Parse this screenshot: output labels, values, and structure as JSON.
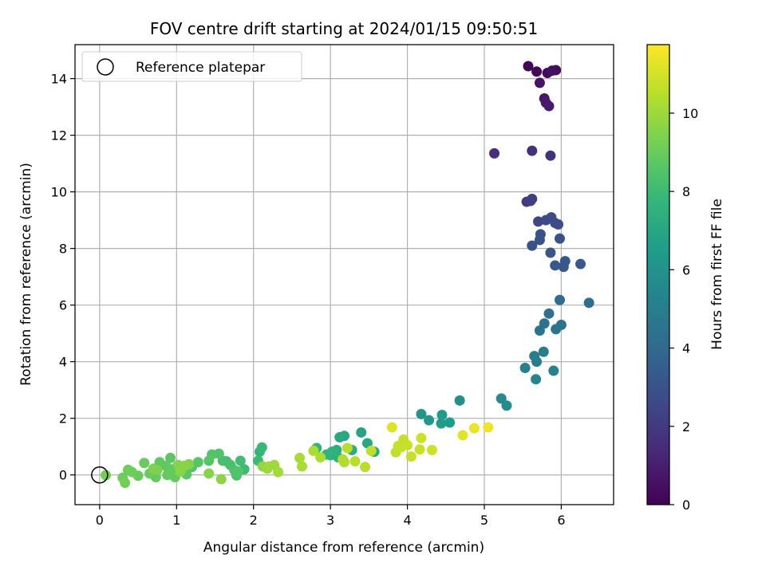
{
  "chart_data": {
    "type": "scatter",
    "title": "FOV centre drift starting at 2024/01/15 09:50:51",
    "xlabel": "Angular distance from reference (arcmin)",
    "ylabel": "Rotation from reference (arcmin)",
    "xlim": [
      -0.32,
      6.68
    ],
    "ylim": [
      -1.05,
      15.2
    ],
    "xticks": [
      0,
      1,
      2,
      3,
      4,
      5,
      6
    ],
    "yticks": [
      0,
      2,
      4,
      6,
      8,
      10,
      12,
      14
    ],
    "grid": true,
    "legend": {
      "placement": "top-left",
      "entries": [
        "Reference platepar"
      ]
    },
    "reference_point": {
      "x": 0,
      "y": 0
    },
    "colorbar": {
      "label": "Hours from first FF file",
      "range": [
        0,
        11.75
      ],
      "ticks": [
        0,
        2,
        4,
        6,
        8,
        10
      ],
      "colormap": "viridis",
      "stops": [
        "#440154",
        "#482878",
        "#3e4989",
        "#31688e",
        "#26828e",
        "#1f9e89",
        "#35b779",
        "#6ece58",
        "#b5de2b",
        "#fde725"
      ]
    },
    "points": [
      {
        "x": 5.57,
        "y": 14.44,
        "h": 0.1
      },
      {
        "x": 5.68,
        "y": 14.25,
        "h": 0.2
      },
      {
        "x": 5.82,
        "y": 14.2,
        "h": 0.3
      },
      {
        "x": 5.93,
        "y": 14.3,
        "h": 0.4
      },
      {
        "x": 5.88,
        "y": 14.28,
        "h": 0.5
      },
      {
        "x": 5.72,
        "y": 13.85,
        "h": 0.6
      },
      {
        "x": 5.78,
        "y": 13.3,
        "h": 0.7
      },
      {
        "x": 5.8,
        "y": 13.15,
        "h": 0.8
      },
      {
        "x": 5.84,
        "y": 13.03,
        "h": 0.9
      },
      {
        "x": 5.13,
        "y": 11.36,
        "h": 1.5
      },
      {
        "x": 5.62,
        "y": 11.45,
        "h": 1.6
      },
      {
        "x": 5.86,
        "y": 11.28,
        "h": 1.7
      },
      {
        "x": 5.55,
        "y": 9.65,
        "h": 2.0
      },
      {
        "x": 5.62,
        "y": 9.75,
        "h": 2.1
      },
      {
        "x": 5.6,
        "y": 9.68,
        "h": 2.2
      },
      {
        "x": 5.7,
        "y": 8.95,
        "h": 2.5
      },
      {
        "x": 5.8,
        "y": 9.0,
        "h": 2.6
      },
      {
        "x": 5.87,
        "y": 9.1,
        "h": 2.65
      },
      {
        "x": 5.92,
        "y": 8.9,
        "h": 2.7
      },
      {
        "x": 5.96,
        "y": 8.85,
        "h": 2.8
      },
      {
        "x": 5.73,
        "y": 8.5,
        "h": 2.9
      },
      {
        "x": 5.72,
        "y": 8.3,
        "h": 3.0
      },
      {
        "x": 5.62,
        "y": 8.1,
        "h": 3.0
      },
      {
        "x": 5.98,
        "y": 8.35,
        "h": 3.0
      },
      {
        "x": 5.86,
        "y": 7.85,
        "h": 3.1
      },
      {
        "x": 5.92,
        "y": 7.4,
        "h": 3.2
      },
      {
        "x": 6.03,
        "y": 7.35,
        "h": 3.2
      },
      {
        "x": 6.05,
        "y": 7.55,
        "h": 3.25
      },
      {
        "x": 6.25,
        "y": 7.45,
        "h": 3.3
      },
      {
        "x": 5.98,
        "y": 6.18,
        "h": 4.1
      },
      {
        "x": 6.36,
        "y": 6.08,
        "h": 4.2
      },
      {
        "x": 5.84,
        "y": 5.7,
        "h": 4.3
      },
      {
        "x": 5.78,
        "y": 5.35,
        "h": 4.4
      },
      {
        "x": 6.0,
        "y": 5.3,
        "h": 4.5
      },
      {
        "x": 5.72,
        "y": 5.1,
        "h": 4.5
      },
      {
        "x": 5.93,
        "y": 5.15,
        "h": 4.5
      },
      {
        "x": 5.65,
        "y": 4.2,
        "h": 5.0
      },
      {
        "x": 5.77,
        "y": 4.35,
        "h": 5.0
      },
      {
        "x": 5.68,
        "y": 4.0,
        "h": 5.0
      },
      {
        "x": 5.53,
        "y": 3.78,
        "h": 5.1
      },
      {
        "x": 5.9,
        "y": 3.68,
        "h": 5.2
      },
      {
        "x": 5.67,
        "y": 3.38,
        "h": 5.3
      },
      {
        "x": 4.68,
        "y": 2.63,
        "h": 5.9
      },
      {
        "x": 5.22,
        "y": 2.7,
        "h": 5.6
      },
      {
        "x": 5.29,
        "y": 2.45,
        "h": 5.7
      },
      {
        "x": 4.18,
        "y": 2.15,
        "h": 6.2
      },
      {
        "x": 4.28,
        "y": 1.93,
        "h": 6.3
      },
      {
        "x": 4.45,
        "y": 2.12,
        "h": 6.4
      },
      {
        "x": 4.44,
        "y": 1.82,
        "h": 6.5
      },
      {
        "x": 4.55,
        "y": 1.85,
        "h": 6.5
      },
      {
        "x": 3.4,
        "y": 1.5,
        "h": 6.8
      },
      {
        "x": 3.48,
        "y": 1.12,
        "h": 7.0
      },
      {
        "x": 3.57,
        "y": 0.82,
        "h": 7.1
      },
      {
        "x": 3.18,
        "y": 1.38,
        "h": 7.0
      },
      {
        "x": 3.12,
        "y": 1.33,
        "h": 7.1
      },
      {
        "x": 3.28,
        "y": 0.88,
        "h": 7.3
      },
      {
        "x": 3.08,
        "y": 0.88,
        "h": 7.3
      },
      {
        "x": 3.0,
        "y": 0.7,
        "h": 7.4
      },
      {
        "x": 3.02,
        "y": 0.82,
        "h": 7.5
      },
      {
        "x": 3.1,
        "y": 0.62,
        "h": 7.5
      },
      {
        "x": 2.95,
        "y": 0.72,
        "h": 7.6
      },
      {
        "x": 2.82,
        "y": 0.95,
        "h": 7.7
      },
      {
        "x": 2.08,
        "y": 0.82,
        "h": 7.8
      },
      {
        "x": 2.11,
        "y": 0.97,
        "h": 7.9
      },
      {
        "x": 2.06,
        "y": 0.5,
        "h": 8.0
      },
      {
        "x": 1.88,
        "y": 0.2,
        "h": 8.0
      },
      {
        "x": 1.83,
        "y": 0.5,
        "h": 8.1
      },
      {
        "x": 1.65,
        "y": 0.48,
        "h": 8.2
      },
      {
        "x": 1.6,
        "y": 0.5,
        "h": 8.3
      },
      {
        "x": 1.7,
        "y": 0.35,
        "h": 8.3
      },
      {
        "x": 1.75,
        "y": 0.17,
        "h": 8.4
      },
      {
        "x": 1.78,
        "y": -0.02,
        "h": 8.4
      },
      {
        "x": 1.8,
        "y": 0.12,
        "h": 8.5
      },
      {
        "x": 1.46,
        "y": 0.72,
        "h": 8.5
      },
      {
        "x": 1.55,
        "y": 0.75,
        "h": 8.5
      },
      {
        "x": 1.42,
        "y": 0.5,
        "h": 8.6
      },
      {
        "x": 1.28,
        "y": 0.45,
        "h": 8.6
      },
      {
        "x": 1.2,
        "y": 0.28,
        "h": 8.6
      },
      {
        "x": 1.1,
        "y": 0.2,
        "h": 8.7
      },
      {
        "x": 1.13,
        "y": 0.02,
        "h": 8.7
      },
      {
        "x": 0.92,
        "y": 0.6,
        "h": 8.7
      },
      {
        "x": 0.78,
        "y": 0.45,
        "h": 8.8
      },
      {
        "x": 0.86,
        "y": 0.32,
        "h": 8.8
      },
      {
        "x": 0.95,
        "y": 0.2,
        "h": 8.8
      },
      {
        "x": 0.88,
        "y": 0.0,
        "h": 8.9
      },
      {
        "x": 0.98,
        "y": -0.08,
        "h": 8.9
      },
      {
        "x": 0.73,
        "y": -0.08,
        "h": 8.9
      },
      {
        "x": 0.65,
        "y": 0.05,
        "h": 9.0
      },
      {
        "x": 0.58,
        "y": 0.42,
        "h": 9.0
      },
      {
        "x": 0.5,
        "y": -0.03,
        "h": 9.0
      },
      {
        "x": 0.37,
        "y": 0.18,
        "h": 9.1
      },
      {
        "x": 0.42,
        "y": 0.1,
        "h": 9.1
      },
      {
        "x": 0.3,
        "y": -0.1,
        "h": 9.1
      },
      {
        "x": 0.33,
        "y": -0.28,
        "h": 9.2
      },
      {
        "x": 0.08,
        "y": -0.01,
        "h": 9.2
      },
      {
        "x": 0.7,
        "y": 0.22,
        "h": 9.4
      },
      {
        "x": 0.75,
        "y": 0.17,
        "h": 9.4
      },
      {
        "x": 1.02,
        "y": 0.35,
        "h": 9.5
      },
      {
        "x": 1.16,
        "y": 0.38,
        "h": 9.5
      },
      {
        "x": 1.1,
        "y": 0.32,
        "h": 9.6
      },
      {
        "x": 1.05,
        "y": 0.12,
        "h": 9.6
      },
      {
        "x": 1.42,
        "y": 0.05,
        "h": 9.6
      },
      {
        "x": 1.58,
        "y": -0.15,
        "h": 9.7
      },
      {
        "x": 2.12,
        "y": 0.3,
        "h": 9.8
      },
      {
        "x": 2.2,
        "y": 0.3,
        "h": 10.0
      },
      {
        "x": 2.18,
        "y": 0.22,
        "h": 10.0
      },
      {
        "x": 2.27,
        "y": 0.35,
        "h": 10.0
      },
      {
        "x": 2.32,
        "y": 0.1,
        "h": 10.1
      },
      {
        "x": 2.6,
        "y": 0.6,
        "h": 10.2
      },
      {
        "x": 2.63,
        "y": 0.3,
        "h": 10.2
      },
      {
        "x": 2.78,
        "y": 0.85,
        "h": 10.3
      },
      {
        "x": 2.87,
        "y": 0.62,
        "h": 10.3
      },
      {
        "x": 3.18,
        "y": 0.45,
        "h": 10.4
      },
      {
        "x": 3.16,
        "y": 0.55,
        "h": 10.4
      },
      {
        "x": 3.22,
        "y": 0.95,
        "h": 10.5
      },
      {
        "x": 3.32,
        "y": 0.48,
        "h": 10.5
      },
      {
        "x": 3.45,
        "y": 0.28,
        "h": 10.5
      },
      {
        "x": 3.53,
        "y": 0.85,
        "h": 10.6
      },
      {
        "x": 3.85,
        "y": 0.8,
        "h": 10.6
      },
      {
        "x": 3.88,
        "y": 1.02,
        "h": 10.7
      },
      {
        "x": 3.95,
        "y": 1.25,
        "h": 10.7
      },
      {
        "x": 3.92,
        "y": 0.98,
        "h": 10.7
      },
      {
        "x": 4.0,
        "y": 1.05,
        "h": 10.8
      },
      {
        "x": 4.05,
        "y": 0.65,
        "h": 10.8
      },
      {
        "x": 4.16,
        "y": 0.9,
        "h": 10.8
      },
      {
        "x": 4.18,
        "y": 1.3,
        "h": 10.9
      },
      {
        "x": 4.32,
        "y": 0.88,
        "h": 10.9
      },
      {
        "x": 3.8,
        "y": 1.68,
        "h": 11.2
      },
      {
        "x": 4.72,
        "y": 1.4,
        "h": 11.3
      },
      {
        "x": 4.87,
        "y": 1.65,
        "h": 11.4
      },
      {
        "x": 5.05,
        "y": 1.68,
        "h": 11.5
      }
    ]
  }
}
